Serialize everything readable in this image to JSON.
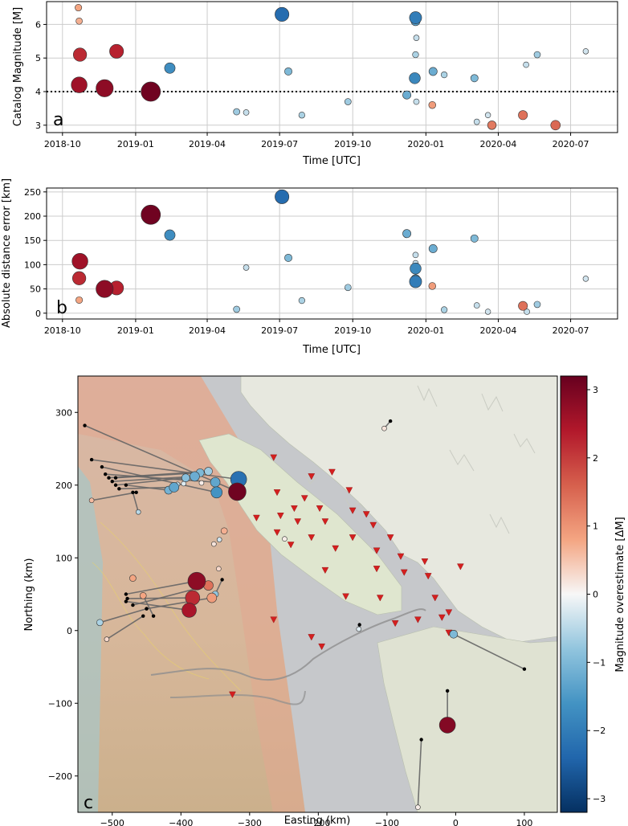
{
  "chart_data": [
    {
      "type": "scatter",
      "panel_label": "a",
      "xlabel": "Time [UTC]",
      "ylabel": "Catalog Magnitude [M]",
      "x_ticks": [
        "2018-10",
        "2019-01",
        "2019-04",
        "2019-07",
        "2019-10",
        "2020-01",
        "2020-04",
        "2020-07"
      ],
      "y_ticks": [
        3,
        4,
        5,
        6
      ],
      "xlim": [
        "2018-09-11",
        "2020-08-29"
      ],
      "ylim": [
        2.78,
        6.68
      ],
      "grid": true,
      "reference_line": {
        "y": 4.0,
        "style": "dotted"
      },
      "color_variable": "Magnitude overestimate [ΔM]",
      "points": [
        {
          "t": "2018-10-21",
          "y": 6.5,
          "dm": 0.8
        },
        {
          "t": "2018-10-22",
          "y": 6.1,
          "dm": 0.7
        },
        {
          "t": "2018-10-23",
          "y": 5.1,
          "dm": 2.2
        },
        {
          "t": "2018-10-22",
          "y": 4.2,
          "dm": 2.6
        },
        {
          "t": "2018-11-23",
          "y": 4.1,
          "dm": 2.8
        },
        {
          "t": "2018-12-08",
          "y": 5.2,
          "dm": 2.3
        },
        {
          "t": "2019-01-20",
          "y": 4.0,
          "dm": 3.1
        },
        {
          "t": "2019-02-13",
          "y": 4.7,
          "dm": -1.7
        },
        {
          "t": "2019-05-08",
          "y": 3.4,
          "dm": -0.7
        },
        {
          "t": "2019-05-20",
          "y": 3.38,
          "dm": -0.4
        },
        {
          "t": "2019-07-04",
          "y": 6.3,
          "dm": -2.3
        },
        {
          "t": "2019-07-12",
          "y": 4.6,
          "dm": -1.0
        },
        {
          "t": "2019-07-29",
          "y": 3.3,
          "dm": -0.6
        },
        {
          "t": "2019-09-25",
          "y": 3.7,
          "dm": -0.7
        },
        {
          "t": "2019-12-08",
          "y": 3.9,
          "dm": -1.2
        },
        {
          "t": "2019-12-18",
          "y": 4.4,
          "dm": -1.8
        },
        {
          "t": "2019-12-19",
          "y": 6.2,
          "dm": -2.0
        },
        {
          "t": "2019-12-19",
          "y": 6.1,
          "dm": -1.4
        },
        {
          "t": "2019-12-20",
          "y": 5.6,
          "dm": -0.4
        },
        {
          "t": "2019-12-19",
          "y": 5.1,
          "dm": -0.6
        },
        {
          "t": "2019-12-20",
          "y": 3.7,
          "dm": -0.4
        },
        {
          "t": "2020-01-10",
          "y": 4.6,
          "dm": -1.2
        },
        {
          "t": "2020-01-09",
          "y": 3.6,
          "dm": 0.9
        },
        {
          "t": "2020-01-24",
          "y": 4.5,
          "dm": -0.6
        },
        {
          "t": "2020-03-02",
          "y": 4.4,
          "dm": -1.0
        },
        {
          "t": "2020-03-05",
          "y": 3.1,
          "dm": -0.4
        },
        {
          "t": "2020-03-19",
          "y": 3.3,
          "dm": -0.3
        },
        {
          "t": "2020-03-24",
          "y": 3.0,
          "dm": 1.3
        },
        {
          "t": "2020-05-02",
          "y": 3.3,
          "dm": 1.4
        },
        {
          "t": "2020-05-06",
          "y": 4.8,
          "dm": -0.4
        },
        {
          "t": "2020-05-20",
          "y": 5.1,
          "dm": -0.7
        },
        {
          "t": "2020-06-12",
          "y": 3.0,
          "dm": 1.5
        },
        {
          "t": "2020-07-20",
          "y": 5.2,
          "dm": -0.3
        }
      ]
    },
    {
      "type": "scatter",
      "panel_label": "b",
      "xlabel": "Time [UTC]",
      "ylabel": "Absolute distance error [km]",
      "x_ticks": [
        "2018-10",
        "2019-01",
        "2019-04",
        "2019-07",
        "2019-10",
        "2020-01",
        "2020-04",
        "2020-07"
      ],
      "y_ticks": [
        0,
        50,
        100,
        150,
        200,
        250
      ],
      "xlim": [
        "2018-09-11",
        "2020-08-29"
      ],
      "ylim": [
        -12,
        258
      ],
      "grid": true,
      "color_variable": "Magnitude overestimate [ΔM]",
      "points": [
        {
          "t": "2018-10-22",
          "y": 27,
          "m": 6.5,
          "dm": 0.8
        },
        {
          "t": "2018-10-22",
          "y": 72,
          "m": 5.1,
          "dm": 2.2
        },
        {
          "t": "2018-10-23",
          "y": 107,
          "m": 4.2,
          "dm": 2.6
        },
        {
          "t": "2018-11-23",
          "y": 50,
          "m": 4.1,
          "dm": 2.8
        },
        {
          "t": "2018-12-08",
          "y": 52,
          "m": 5.2,
          "dm": 2.3
        },
        {
          "t": "2019-01-20",
          "y": 203,
          "m": 4.0,
          "dm": 3.1
        },
        {
          "t": "2019-02-13",
          "y": 161,
          "m": 4.7,
          "dm": -1.7
        },
        {
          "t": "2019-05-08",
          "y": 8,
          "m": 3.4,
          "dm": -0.7
        },
        {
          "t": "2019-05-20",
          "y": 94,
          "m": 3.38,
          "dm": -0.4
        },
        {
          "t": "2019-07-04",
          "y": 240,
          "m": 6.3,
          "dm": -2.3
        },
        {
          "t": "2019-07-12",
          "y": 114,
          "m": 4.6,
          "dm": -1.0
        },
        {
          "t": "2019-07-29",
          "y": 26,
          "m": 3.3,
          "dm": -0.6
        },
        {
          "t": "2019-09-25",
          "y": 53,
          "m": 3.7,
          "dm": -0.7
        },
        {
          "t": "2019-12-08",
          "y": 164,
          "m": 3.9,
          "dm": -1.2
        },
        {
          "t": "2019-12-19",
          "y": 120,
          "m": 3.7,
          "dm": -0.4
        },
        {
          "t": "2019-12-19",
          "y": 103,
          "m": 5.6,
          "dm": -0.4
        },
        {
          "t": "2019-12-20",
          "y": 97,
          "m": 5.1,
          "dm": -0.6
        },
        {
          "t": "2019-12-19",
          "y": 92,
          "m": 4.4,
          "dm": -1.8
        },
        {
          "t": "2019-12-19",
          "y": 70,
          "m": 6.1,
          "dm": -1.4
        },
        {
          "t": "2019-12-19",
          "y": 65,
          "m": 6.2,
          "dm": -2.0
        },
        {
          "t": "2020-01-10",
          "y": 133,
          "m": 4.6,
          "dm": -1.2
        },
        {
          "t": "2020-01-09",
          "y": 56,
          "m": 3.6,
          "dm": 0.9
        },
        {
          "t": "2020-01-24",
          "y": 7,
          "m": 4.5,
          "dm": -0.6
        },
        {
          "t": "2020-03-02",
          "y": 154,
          "m": 4.4,
          "dm": -1.0
        },
        {
          "t": "2020-03-05",
          "y": 16,
          "m": 3.1,
          "dm": -0.4
        },
        {
          "t": "2020-03-19",
          "y": 3,
          "m": 3.3,
          "dm": -0.3
        },
        {
          "t": "2020-05-02",
          "y": 15,
          "m": 3.3,
          "dm": 1.4
        },
        {
          "t": "2020-05-07",
          "y": 3,
          "m": 4.8,
          "dm": -0.4
        },
        {
          "t": "2020-05-20",
          "y": 18,
          "m": 5.1,
          "dm": -0.7
        },
        {
          "t": "2020-07-20",
          "y": 71,
          "m": 5.2,
          "dm": -0.3
        }
      ]
    },
    {
      "type": "scatter",
      "panel_label": "c",
      "xlabel": "Easting (km)",
      "ylabel": "Northing (km)",
      "x_ticks": [
        -500,
        -400,
        -300,
        -200,
        -100,
        0,
        100
      ],
      "y_ticks": [
        -200,
        -100,
        0,
        100,
        200,
        300
      ],
      "xlim": [
        -550,
        148
      ],
      "ylim": [
        -250,
        350
      ],
      "colorbar": {
        "label": "Magnitude overestimate [ΔM]",
        "range": [
          -3.2,
          3.2
        ],
        "ticks": [
          -3,
          -2,
          -1,
          0,
          1,
          2,
          3
        ]
      },
      "colormap": {
        "stops": [
          {
            "v": -3.2,
            "color": "#053061"
          },
          {
            "v": -2.4,
            "color": "#2166ac"
          },
          {
            "v": -1.6,
            "color": "#4393c3"
          },
          {
            "v": -0.8,
            "color": "#92c5de"
          },
          {
            "v": 0,
            "color": "#f7f7f7"
          },
          {
            "v": 0.8,
            "color": "#f4a582"
          },
          {
            "v": 1.6,
            "color": "#d6604d"
          },
          {
            "v": 2.4,
            "color": "#b2182b"
          },
          {
            "v": 3.2,
            "color": "#67001f"
          }
        ]
      },
      "stations": [
        [
          -265,
          238
        ],
        [
          -210,
          212
        ],
        [
          -180,
          218
        ],
        [
          -155,
          193
        ],
        [
          -260,
          190
        ],
        [
          -220,
          182
        ],
        [
          -235,
          168
        ],
        [
          -198,
          168
        ],
        [
          -150,
          165
        ],
        [
          -130,
          160
        ],
        [
          -290,
          155
        ],
        [
          -255,
          158
        ],
        [
          -230,
          150
        ],
        [
          -190,
          150
        ],
        [
          -120,
          145
        ],
        [
          -260,
          135
        ],
        [
          -210,
          128
        ],
        [
          -150,
          128
        ],
        [
          -95,
          128
        ],
        [
          -240,
          118
        ],
        [
          -175,
          113
        ],
        [
          -115,
          110
        ],
        [
          -80,
          102
        ],
        [
          -45,
          95
        ],
        [
          7,
          88
        ],
        [
          -190,
          83
        ],
        [
          -115,
          85
        ],
        [
          -75,
          80
        ],
        [
          -40,
          75
        ],
        [
          -160,
          47
        ],
        [
          -110,
          45
        ],
        [
          -30,
          45
        ],
        [
          -20,
          18
        ],
        [
          -55,
          15
        ],
        [
          -88,
          10
        ],
        [
          -265,
          15
        ],
        [
          -210,
          -9
        ],
        [
          -195,
          -22
        ],
        [
          -10,
          25
        ],
        [
          -10,
          -3
        ],
        [
          -325,
          -88
        ]
      ],
      "events": [
        {
          "x": -377,
          "y": 68,
          "dm": 2.8,
          "size": 11,
          "bx": -480,
          "by": 50
        },
        {
          "x": -383,
          "y": 45,
          "dm": 2.2,
          "size": 9,
          "bx": -478,
          "by": 44
        },
        {
          "x": -388,
          "y": 28,
          "dm": 2.5,
          "size": 9,
          "bx": -480,
          "by": 40
        },
        {
          "x": -360,
          "y": 62,
          "dm": 1.4,
          "size": 6,
          "bx": -470,
          "by": 35
        },
        {
          "x": -355,
          "y": 45,
          "dm": 0.9,
          "size": 6,
          "bx": -450,
          "by": 30
        },
        {
          "x": -455,
          "y": 48,
          "dm": 0.8,
          "size": 4,
          "bx": -440,
          "by": 20
        },
        {
          "x": -470,
          "y": 72,
          "dm": 0.8,
          "size": 4
        },
        {
          "x": -518,
          "y": 11,
          "dm": -0.6,
          "size": 4,
          "bx": -450,
          "by": 30
        },
        {
          "x": -508,
          "y": -12,
          "dm": 0.3,
          "size": 3,
          "bx": -455,
          "by": 20
        },
        {
          "x": -350,
          "y": 50,
          "dm": -0.8,
          "size": 4,
          "bx": -340,
          "by": 70
        },
        {
          "x": -345,
          "y": 85,
          "dm": 0.3,
          "size": 3
        },
        {
          "x": -337,
          "y": 137,
          "dm": 0.7,
          "size": 4
        },
        {
          "x": -344,
          "y": 125,
          "dm": -0.3,
          "size": 3
        },
        {
          "x": -352,
          "y": 119,
          "dm": 0.2,
          "size": 3
        },
        {
          "x": -318,
          "y": 191,
          "dm": 3.1,
          "size": 11,
          "bx": -540,
          "by": 282
        },
        {
          "x": -316,
          "y": 208,
          "dm": -2.2,
          "size": 10,
          "bx": -530,
          "by": 235
        },
        {
          "x": -348,
          "y": 190,
          "dm": -1.6,
          "size": 7,
          "bx": -515,
          "by": 225
        },
        {
          "x": -350,
          "y": 204,
          "dm": -1.3,
          "size": 6,
          "bx": -510,
          "by": 215
        },
        {
          "x": -360,
          "y": 219,
          "dm": -0.7,
          "size": 5,
          "bx": -505,
          "by": 210
        },
        {
          "x": -380,
          "y": 212,
          "dm": -1.2,
          "size": 6,
          "bx": -500,
          "by": 205
        },
        {
          "x": -372,
          "y": 217,
          "dm": -1.0,
          "size": 5,
          "bx": -495,
          "by": 210
        },
        {
          "x": -393,
          "y": 210,
          "dm": -0.9,
          "size": 5,
          "bx": -495,
          "by": 200
        },
        {
          "x": -410,
          "y": 197,
          "dm": -1.3,
          "size": 6,
          "bx": -490,
          "by": 195
        },
        {
          "x": -418,
          "y": 193,
          "dm": -1.1,
          "size": 5,
          "bx": -480,
          "by": 200
        },
        {
          "x": -396,
          "y": 202,
          "dm": -0.2,
          "size": 3
        },
        {
          "x": -370,
          "y": 203,
          "dm": 0.1,
          "size": 3
        },
        {
          "x": -405,
          "y": 201,
          "dm": -0.4,
          "size": 3
        },
        {
          "x": -462,
          "y": 163,
          "dm": -0.5,
          "size": 3,
          "bx": -470,
          "by": 190
        },
        {
          "x": -530,
          "y": 179,
          "dm": 0.6,
          "size": 3,
          "bx": -465,
          "by": 190
        },
        {
          "x": -104,
          "y": 278,
          "dm": 0.2,
          "size": 3,
          "bx": -95,
          "by": 288
        },
        {
          "x": -249,
          "y": 126,
          "dm": 0.1,
          "size": 3
        },
        {
          "x": -141,
          "y": 2,
          "dm": -0.2,
          "size": 3,
          "bx": -140,
          "by": 8
        },
        {
          "x": -3,
          "y": -5,
          "dm": -1.0,
          "size": 5,
          "bx": 100,
          "by": -53
        },
        {
          "x": -12,
          "y": -130,
          "dm": 2.9,
          "size": 10,
          "bx": -12,
          "by": -83
        },
        {
          "x": -55,
          "y": -243,
          "dm": 0.1,
          "size": 3,
          "bx": -50,
          "by": -150
        }
      ]
    }
  ]
}
